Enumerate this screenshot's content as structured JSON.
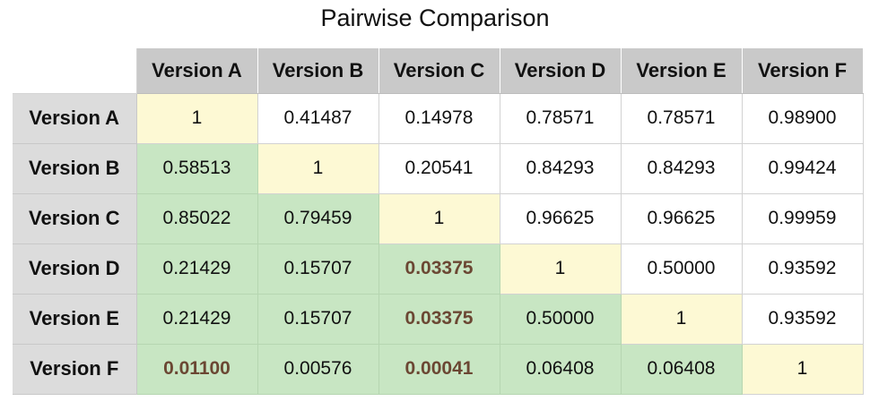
{
  "chart_data": {
    "type": "table",
    "title": "Pairwise Comparison",
    "columns": [
      "Version A",
      "Version B",
      "Version C",
      "Version D",
      "Version E",
      "Version F"
    ],
    "rows": [
      {
        "label": "Version A",
        "cells": [
          "1",
          "0.41487",
          "0.14978",
          "0.78571",
          "0.78571",
          "0.98900"
        ]
      },
      {
        "label": "Version B",
        "cells": [
          "0.58513",
          "1",
          "0.20541",
          "0.84293",
          "0.84293",
          "0.99424"
        ]
      },
      {
        "label": "Version C",
        "cells": [
          "0.85022",
          "0.79459",
          "1",
          "0.96625",
          "0.96625",
          "0.99959"
        ]
      },
      {
        "label": "Version D",
        "cells": [
          "0.21429",
          "0.15707",
          "0.03375",
          "1",
          "0.50000",
          "0.93592"
        ]
      },
      {
        "label": "Version E",
        "cells": [
          "0.21429",
          "0.15707",
          "0.03375",
          "0.50000",
          "1",
          "0.93592"
        ]
      },
      {
        "label": "Version F",
        "cells": [
          "0.01100",
          "0.00576",
          "0.00041",
          "0.06408",
          "0.06408",
          "1"
        ]
      }
    ],
    "highlighted_cells": [
      [
        3,
        2
      ],
      [
        4,
        2
      ],
      [
        5,
        0
      ],
      [
        5,
        2
      ]
    ],
    "colors": {
      "header_bg": "#c9c9c9",
      "row_header_bg": "#dcdcdc",
      "diagonal_bg": "#fdf9d4",
      "lower_triangle_bg": "#c8e6c3",
      "upper_triangle_bg": "#ffffff",
      "highlight_text": "#6b4733"
    }
  }
}
